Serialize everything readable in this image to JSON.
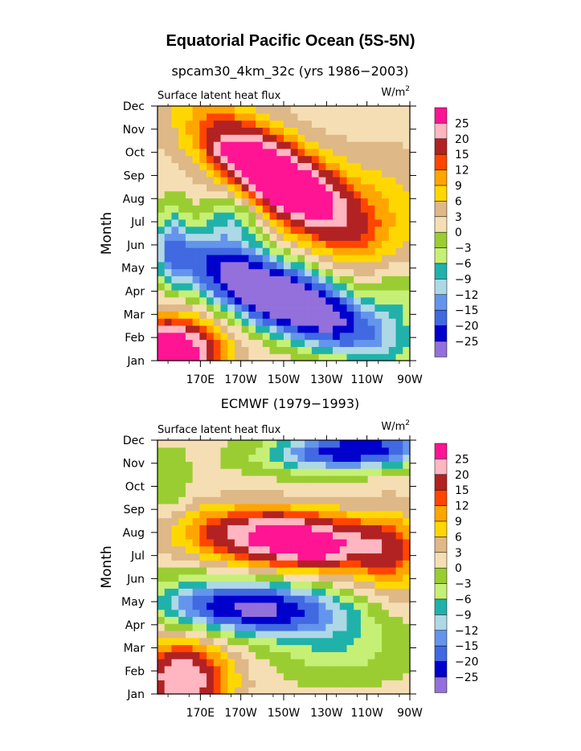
{
  "title": "Equatorial Pacific Ocean (5S-5N)",
  "colors": {
    "25": "#ff1493",
    "20": "#ffb6c1",
    "15": "#b22222",
    "12": "#ff4500",
    "9": "#ffa500",
    "6": "#ffd700",
    "3": "#deb887",
    "0": "#f5deb3",
    "-3": "#9acd32",
    "-6": "#c5f075",
    "-9": "#20b2aa",
    "-12": "#add8e6",
    "-15": "#6495ed",
    "-20": "#4169e1",
    "-25": "#0000cd",
    "below": "#9370db"
  },
  "chart_data": [
    {
      "type": "heatmap",
      "title": "spcam30_4km_32c (yrs 1986−2003)",
      "left_label": "Surface latent heat flux",
      "units_label": "W/m",
      "units_sup": "2",
      "xlabel": "",
      "ylabel": "Month",
      "x_ticks": [
        "170E",
        "170W",
        "150W",
        "130W",
        "110W",
        "90W"
      ],
      "y_ticks": [
        "Jan",
        "Feb",
        "Mar",
        "Apr",
        "May",
        "Jun",
        "Jul",
        "Aug",
        "Sep",
        "Oct",
        "Nov",
        "Dec"
      ],
      "colorbar_levels": [
        "25",
        "20",
        "15",
        "12",
        "9",
        "6",
        "3",
        "0",
        "−3",
        "−6",
        "−9",
        "−12",
        "−15",
        "−20",
        "−25"
      ],
      "approx_features": {
        "max_region": "pink/magenta (>20) near 150W-130W, Jul-Oct",
        "min_region": "purple (<-25) near 160W-130W, Mar-May",
        "west_jan_feb": "pink (>20) near 160E in Jan-Feb"
      }
    },
    {
      "type": "heatmap",
      "title": "ECMWF (1979−1993)",
      "left_label": "Surface latent heat flux",
      "units_label": "W/m",
      "units_sup": "2",
      "xlabel": "",
      "ylabel": "Month",
      "x_ticks": [
        "170E",
        "170W",
        "150W",
        "130W",
        "110W",
        "90W"
      ],
      "y_ticks": [
        "Jan",
        "Feb",
        "Mar",
        "Apr",
        "May",
        "Jun",
        "Jul",
        "Aug",
        "Sep",
        "Oct",
        "Nov",
        "Dec"
      ],
      "colorbar_levels": [
        "25",
        "20",
        "15",
        "12",
        "9",
        "6",
        "3",
        "0",
        "−3",
        "−6",
        "−9",
        "−12",
        "−15",
        "−20",
        "−25"
      ],
      "approx_features": {
        "max_region": "magenta (>25) near 140W, Jul",
        "min_region": "dark blue (<-20) near 150W-140W, Apr and near 120W, Nov",
        "west_jan_feb": "dark red (>15) near 165E in Jan-Feb"
      }
    }
  ]
}
